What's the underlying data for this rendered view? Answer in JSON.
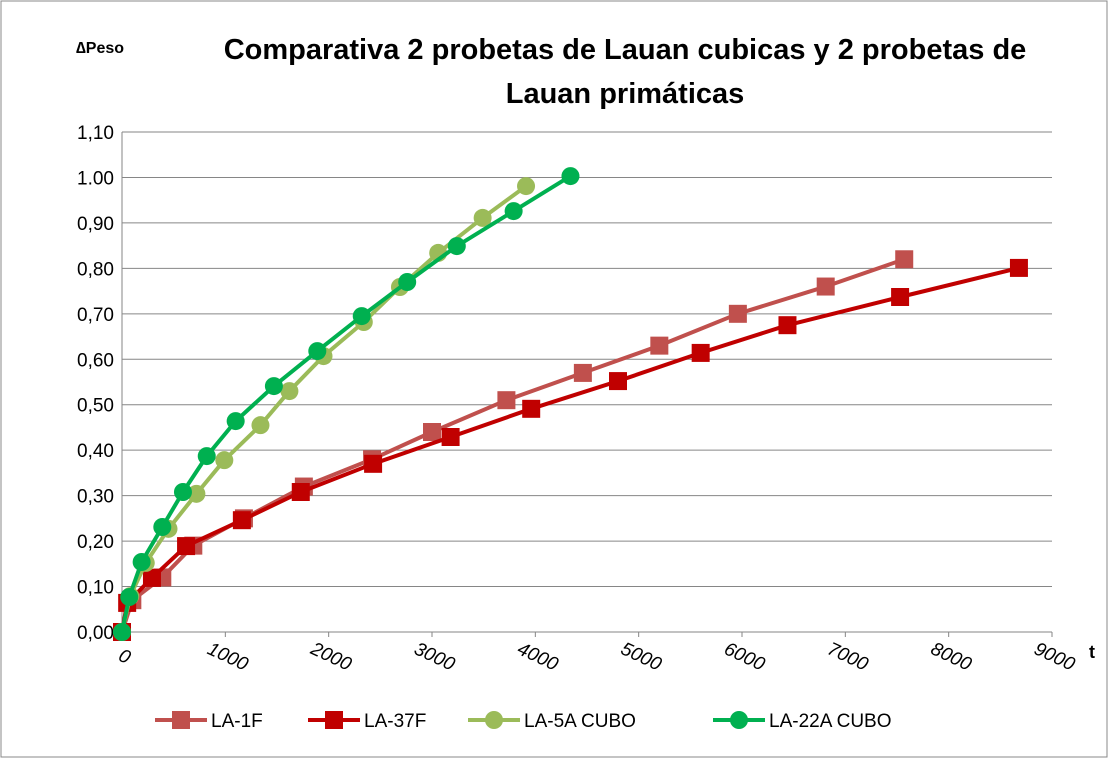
{
  "chart_data": {
    "type": "line",
    "title": "Comparativa 2 probetas de Lauan cubicas y 2 probetas de Lauan primáticas",
    "y_label": "∆Peso",
    "x_label": "t",
    "xlim": [
      0,
      9000
    ],
    "xticks": [
      0,
      1000,
      2000,
      3000,
      4000,
      5000,
      6000,
      7000,
      8000,
      9000
    ],
    "ylim": [
      0,
      1.1
    ],
    "yticks": [
      {
        "value": 0,
        "label": "0,00"
      },
      {
        "value": 0.1,
        "label": "0,10"
      },
      {
        "value": 0.2,
        "label": "0,20"
      },
      {
        "value": 0.3,
        "label": "0,30"
      },
      {
        "value": 0.4,
        "label": "0,40"
      },
      {
        "value": 0.5,
        "label": "0,50"
      },
      {
        "value": 0.6,
        "label": "0,60"
      },
      {
        "value": 0.7,
        "label": "0,70"
      },
      {
        "value": 0.8,
        "label": "0,80"
      },
      {
        "value": 0.9,
        "label": "0,90"
      },
      {
        "value": 1.0,
        "label": "1.00"
      },
      {
        "value": 1.1,
        "label": "1,10"
      }
    ],
    "grid": true,
    "legend": "bottom",
    "series": [
      {
        "name": "LA-1F",
        "color": "#c0504d",
        "marker": "square",
        "x": [
          0,
          100,
          390,
          690,
          1180,
          1760,
          2420,
          3000,
          3720,
          4460,
          5200,
          5960,
          6810,
          7570
        ],
        "values": [
          0,
          0.07,
          0.12,
          0.19,
          0.25,
          0.32,
          0.38,
          0.44,
          0.51,
          0.57,
          0.63,
          0.7,
          0.76,
          0.82
        ]
      },
      {
        "name": "LA-37F",
        "color": "#c00000",
        "marker": "square",
        "x": [
          0,
          50,
          290,
          620,
          1160,
          1730,
          2430,
          3180,
          3960,
          4800,
          5600,
          6440,
          7530,
          8680
        ],
        "values": [
          0,
          0.064,
          0.119,
          0.189,
          0.246,
          0.308,
          0.37,
          0.429,
          0.491,
          0.552,
          0.614,
          0.675,
          0.737,
          0.801
        ]
      },
      {
        "name": "LA-5A CUBO",
        "color": "#9bbb59",
        "marker": "circle",
        "x": [
          0,
          80,
          230,
          450,
          720,
          990,
          1340,
          1620,
          1950,
          2340,
          2690,
          3060,
          3490,
          3910
        ],
        "values": [
          0,
          0.079,
          0.152,
          0.227,
          0.304,
          0.378,
          0.455,
          0.53,
          0.607,
          0.682,
          0.759,
          0.834,
          0.911,
          0.981
        ]
      },
      {
        "name": "LA-22A CUBO",
        "color": "#00b050",
        "marker": "circle",
        "x": [
          0,
          70,
          190,
          390,
          590,
          820,
          1100,
          1470,
          1890,
          2320,
          2760,
          3240,
          3790,
          4340
        ],
        "values": [
          0,
          0.077,
          0.154,
          0.231,
          0.308,
          0.387,
          0.464,
          0.541,
          0.618,
          0.695,
          0.77,
          0.849,
          0.926,
          1.003
        ]
      }
    ]
  }
}
